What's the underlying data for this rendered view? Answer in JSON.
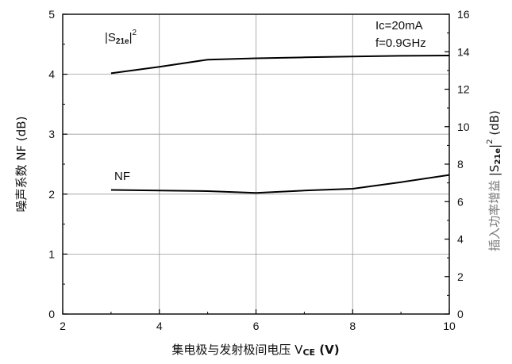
{
  "chart_data": {
    "type": "line",
    "xlabel": "集电极与发射极间电压 V",
    "xlabel_sub": "CE",
    "xlabel_unit": " (V)",
    "ylabel_left": "噪声系数 NF (dB)",
    "ylabel_right_cn": "插入功率增益",
    "ylabel_right_sym": "|S",
    "ylabel_right_sub": "21e",
    "ylabel_right_tail": "|",
    "ylabel_right_sup": "2",
    "ylabel_right_unit": "(dB)",
    "xlim": [
      2,
      10
    ],
    "ylim_left": [
      0,
      5
    ],
    "ylim_right": [
      0,
      16
    ],
    "x_ticks": [
      2,
      4,
      6,
      8,
      10
    ],
    "y_left_ticks": [
      0,
      1,
      2,
      3,
      4,
      5
    ],
    "y_right_ticks": [
      0,
      2,
      4,
      6,
      8,
      10,
      12,
      14,
      16
    ],
    "grid": true,
    "annotations": [
      "Ic=20mA",
      "f=0.9GHz"
    ],
    "series": [
      {
        "name": "NF",
        "axis": "left",
        "x": [
          3,
          4,
          5,
          6,
          7,
          8,
          9,
          10
        ],
        "y": [
          2.07,
          2.06,
          2.05,
          2.02,
          2.06,
          2.09,
          2.2,
          2.32
        ]
      },
      {
        "name": "|S21e|²",
        "label_sym": "|S",
        "label_sub": "21e",
        "label_tail": "|",
        "label_sup": "2",
        "axis": "right",
        "x": [
          3,
          4,
          5,
          6,
          7,
          8,
          9,
          10
        ],
        "y": [
          12.85,
          13.2,
          13.58,
          13.65,
          13.7,
          13.75,
          13.78,
          13.8
        ]
      }
    ]
  }
}
